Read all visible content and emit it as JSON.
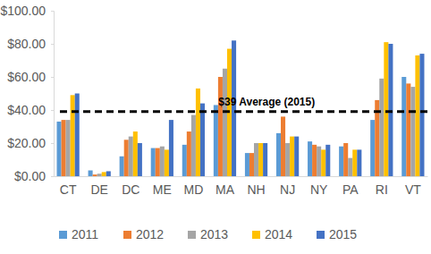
{
  "chart_data": {
    "type": "bar",
    "categories": [
      "CT",
      "DE",
      "DC",
      "ME",
      "MD",
      "MA",
      "NH",
      "NJ",
      "NY",
      "PA",
      "RI",
      "VT"
    ],
    "series": [
      {
        "name": "2011",
        "color": "#5b9bd5",
        "values": [
          33,
          3.5,
          12,
          17,
          19,
          43,
          14,
          26,
          21,
          18,
          34,
          60
        ]
      },
      {
        "name": "2012",
        "color": "#ed7d31",
        "values": [
          34,
          1,
          22,
          17,
          27,
          60,
          14,
          36,
          19,
          20,
          46,
          56
        ]
      },
      {
        "name": "2013",
        "color": "#a5a5a5",
        "values": [
          34,
          1.5,
          24,
          18,
          37,
          65,
          20,
          20,
          18,
          11,
          59,
          54
        ]
      },
      {
        "name": "2014",
        "color": "#ffc000",
        "values": [
          49,
          2.5,
          27,
          16,
          53,
          77,
          20,
          24,
          16,
          16,
          81,
          73
        ]
      },
      {
        "name": "2015",
        "color": "#4472c4",
        "values": [
          50,
          3,
          20,
          34,
          44,
          82,
          20,
          24,
          19,
          16,
          80,
          74
        ]
      }
    ],
    "ylim": [
      0,
      100
    ],
    "yticks": [
      {
        "value": 0,
        "label": "$0.00"
      },
      {
        "value": 20,
        "label": "$20.00"
      },
      {
        "value": 40,
        "label": "$40.00"
      },
      {
        "value": 60,
        "label": "$60.00"
      },
      {
        "value": 80,
        "label": "$80.00"
      },
      {
        "value": 100,
        "label": "$100.00"
      }
    ],
    "annotations": [
      {
        "text": "$39 Average (2015)",
        "value": 39
      }
    ],
    "grid": false,
    "legend": "bottom"
  }
}
